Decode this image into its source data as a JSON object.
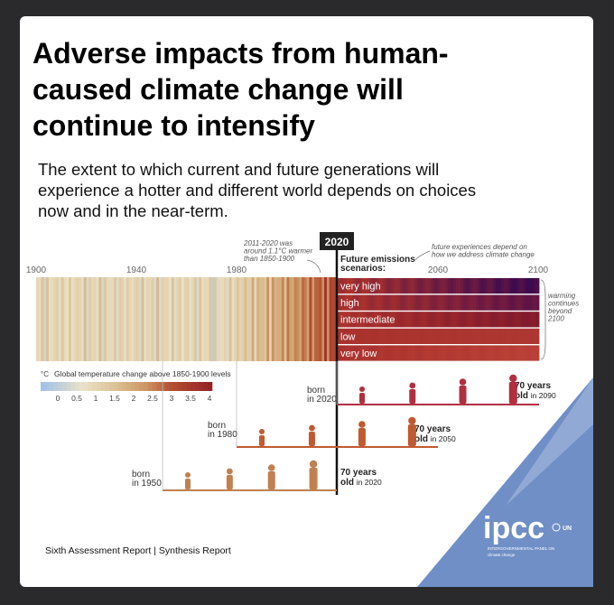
{
  "header": {
    "title_lines": [
      "Adverse impacts from human-",
      "caused climate change will",
      "continue to intensify"
    ],
    "subtitle_lines": [
      "The extent to which current and future generations will",
      "experience a hotter and different world depends on choices",
      "now and in the near-term."
    ]
  },
  "timeline": {
    "years": [
      "1900",
      "1940",
      "1980",
      "2020",
      "2060",
      "2100"
    ],
    "annotation_left": [
      "2011-2020 was",
      "around 1.1°C warmer",
      "than 1850-1900"
    ],
    "future_label": [
      "Future emissions",
      "scenarios:"
    ],
    "annotation_right": [
      "future experiences depend on",
      "how we address climate change"
    ],
    "scenarios": [
      "very high",
      "high",
      "intermediate",
      "low",
      "very low"
    ],
    "warming_note": [
      "warming",
      "continues",
      "beyond",
      "2100"
    ]
  },
  "legend": {
    "unit": "°C",
    "title": "Global temperature change above 1850-1900 levels",
    "ticks": [
      "0",
      "0.5",
      "1",
      "1.5",
      "2",
      "2.5",
      "3",
      "3.5",
      "4"
    ]
  },
  "generations": [
    {
      "born": "born",
      "year": "in 2020",
      "age": "70 years",
      "old": "old",
      "old_year": "in 2090"
    },
    {
      "born": "born",
      "year": "in 1980",
      "age": "70 years",
      "old": "old",
      "old_year": "in 2050"
    },
    {
      "born": "born",
      "year": "in 1950",
      "age": "70 years",
      "old": "old",
      "old_year": "in 2020"
    }
  ],
  "footer": {
    "report": "Sixth Assessment Report | Synthesis Report",
    "logo": "ipcc",
    "logo_sub": [
      "INTERGOVERNMENTAL PANEL ON",
      "climate change"
    ],
    "un": "UN"
  }
}
